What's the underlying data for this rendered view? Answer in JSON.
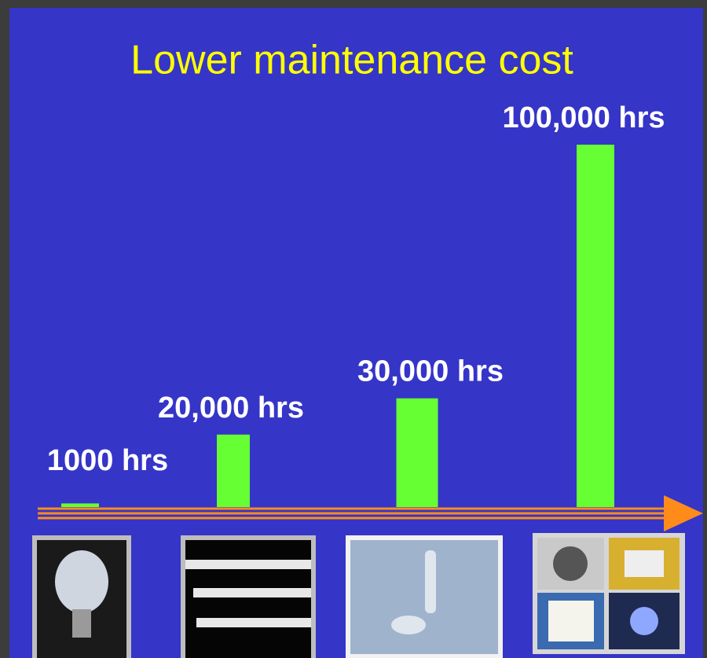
{
  "chart_data": {
    "type": "bar",
    "title": "Lower maintenance cost",
    "values": [
      1000,
      20000,
      30000,
      100000
    ],
    "value_labels": [
      "1000 hrs",
      "20,000 hrs",
      "30,000 hrs",
      "100,000 hrs"
    ],
    "color": "#66ff33",
    "ylim": [
      0,
      100000
    ]
  }
}
